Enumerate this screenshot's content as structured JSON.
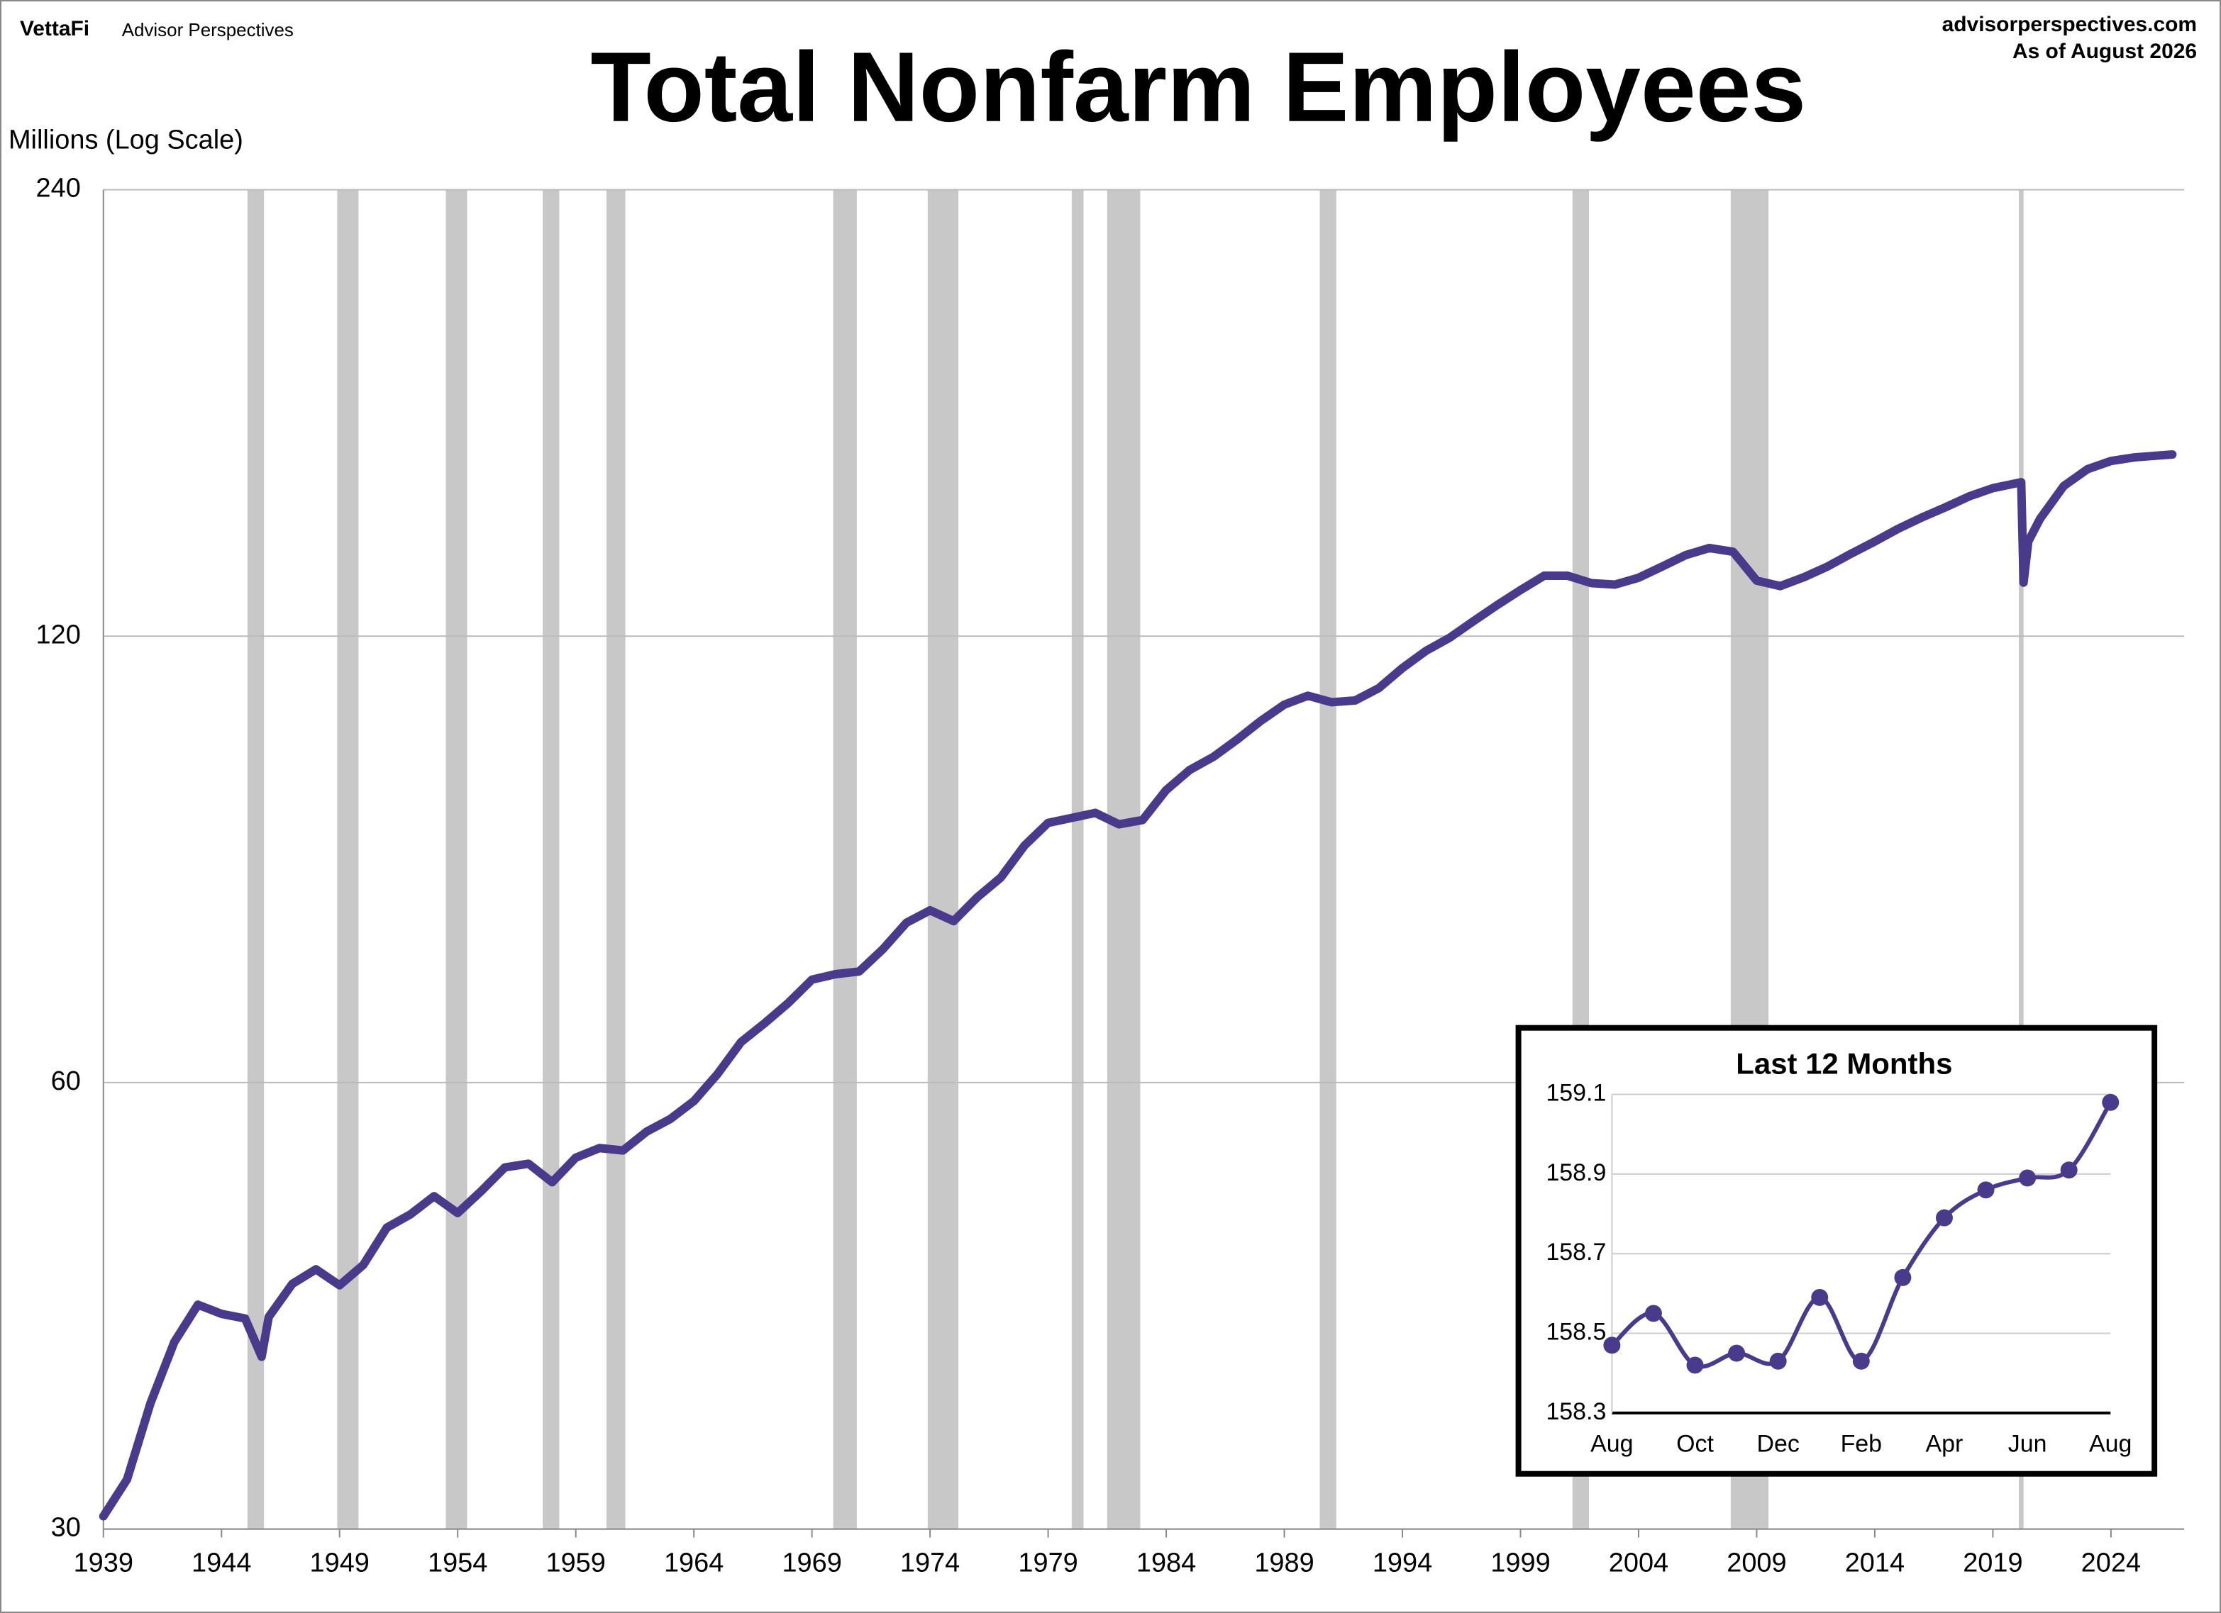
{
  "header": {
    "brand": "VettaFi",
    "brand_sub": "Advisor Perspectives",
    "site": "advisorperspectives.com",
    "as_of": "As of August 2026"
  },
  "chart_data": [
    {
      "type": "line",
      "title": "Total Nonfarm Employees",
      "y_label": "Millions (Log Scale)",
      "log_scale": true,
      "grid": true,
      "xlim": [
        1939,
        2027.1
      ],
      "xticks": [
        1939,
        1944,
        1949,
        1954,
        1959,
        1964,
        1969,
        1974,
        1979,
        1984,
        1989,
        1994,
        1999,
        2004,
        2009,
        2014,
        2019,
        2024
      ],
      "ylim": [
        30,
        240
      ],
      "yticks": [
        30,
        60,
        120,
        240
      ],
      "recession_color": "#c8c8c8",
      "recessions": [
        [
          1945.1,
          1945.8
        ],
        [
          1948.9,
          1949.8
        ],
        [
          1953.5,
          1954.4
        ],
        [
          1957.6,
          1958.3
        ],
        [
          1960.3,
          1961.1
        ],
        [
          1969.9,
          1970.9
        ],
        [
          1973.9,
          1975.2
        ],
        [
          1980.0,
          1980.5
        ],
        [
          1981.5,
          1982.9
        ],
        [
          1990.5,
          1991.2
        ],
        [
          2001.2,
          2001.9
        ],
        [
          2007.9,
          2009.5
        ],
        [
          2020.1,
          2020.3
        ]
      ],
      "x": [
        1939,
        1940,
        1941,
        1942,
        1943,
        1944,
        1945,
        1945.7,
        1946,
        1947,
        1948,
        1949,
        1950,
        1951,
        1952,
        1953,
        1954,
        1955,
        1956,
        1957,
        1958,
        1959,
        1960,
        1961,
        1962,
        1963,
        1964,
        1965,
        1966,
        1967,
        1968,
        1969,
        1970,
        1971,
        1972,
        1973,
        1974,
        1975,
        1976,
        1977,
        1978,
        1979,
        1980,
        1981,
        1982,
        1983,
        1984,
        1985,
        1986,
        1987,
        1988,
        1989,
        1990,
        1991,
        1992,
        1993,
        1994,
        1995,
        1996,
        1997,
        1998,
        1999,
        2000,
        2001,
        2002,
        2003,
        2004,
        2005,
        2006,
        2007,
        2008,
        2009,
        2010,
        2011,
        2012,
        2013,
        2014,
        2015,
        2016,
        2017,
        2018,
        2019,
        2020.2,
        2020.3,
        2020.5,
        2021,
        2022,
        2023,
        2024,
        2025,
        2026.6
      ],
      "series": [
        {
          "name": "Total Nonfarm Employees",
          "color": "#4a3a8c",
          "values": [
            30.6,
            32.4,
            36.5,
            40.1,
            42.5,
            41.9,
            41.6,
            39.2,
            41.7,
            43.9,
            44.9,
            43.8,
            45.2,
            47.9,
            48.9,
            50.3,
            49.0,
            50.7,
            52.6,
            52.9,
            51.4,
            53.4,
            54.2,
            54.0,
            55.6,
            56.7,
            58.3,
            60.8,
            63.9,
            65.8,
            67.9,
            70.4,
            71.0,
            71.3,
            73.8,
            76.9,
            78.4,
            77.1,
            80.0,
            82.5,
            86.7,
            89.8,
            90.5,
            91.2,
            89.6,
            90.2,
            94.5,
            97.5,
            99.5,
            102.2,
            105.2,
            107.9,
            109.4,
            108.3,
            108.6,
            110.7,
            114.2,
            117.3,
            119.7,
            122.8,
            125.9,
            128.9,
            131.8,
            131.8,
            130.3,
            130.0,
            131.4,
            133.7,
            136.1,
            137.6,
            136.8,
            130.8,
            129.7,
            131.5,
            133.7,
            136.4,
            139.0,
            141.8,
            144.3,
            146.6,
            149.1,
            151.0,
            152.4,
            130.4,
            139.0,
            144.0,
            151.5,
            155.5,
            157.5,
            158.4,
            159.1
          ]
        }
      ]
    },
    {
      "type": "line",
      "title": "Last 12 Months",
      "grid": true,
      "categories": [
        "Aug",
        null,
        "Oct",
        null,
        "Dec",
        null,
        "Feb",
        null,
        "Apr",
        null,
        "Jun",
        null,
        "Aug"
      ],
      "ylim": [
        158.3,
        159.1
      ],
      "yticks": [
        158.3,
        158.5,
        158.7,
        158.9,
        159.1
      ],
      "series": [
        {
          "name": "Last 12 Months",
          "color": "#4a3a8c",
          "values": [
            158.47,
            158.55,
            158.42,
            158.45,
            158.43,
            158.59,
            158.43,
            158.64,
            158.79,
            158.86,
            158.89,
            158.91,
            159.08
          ]
        }
      ]
    }
  ]
}
